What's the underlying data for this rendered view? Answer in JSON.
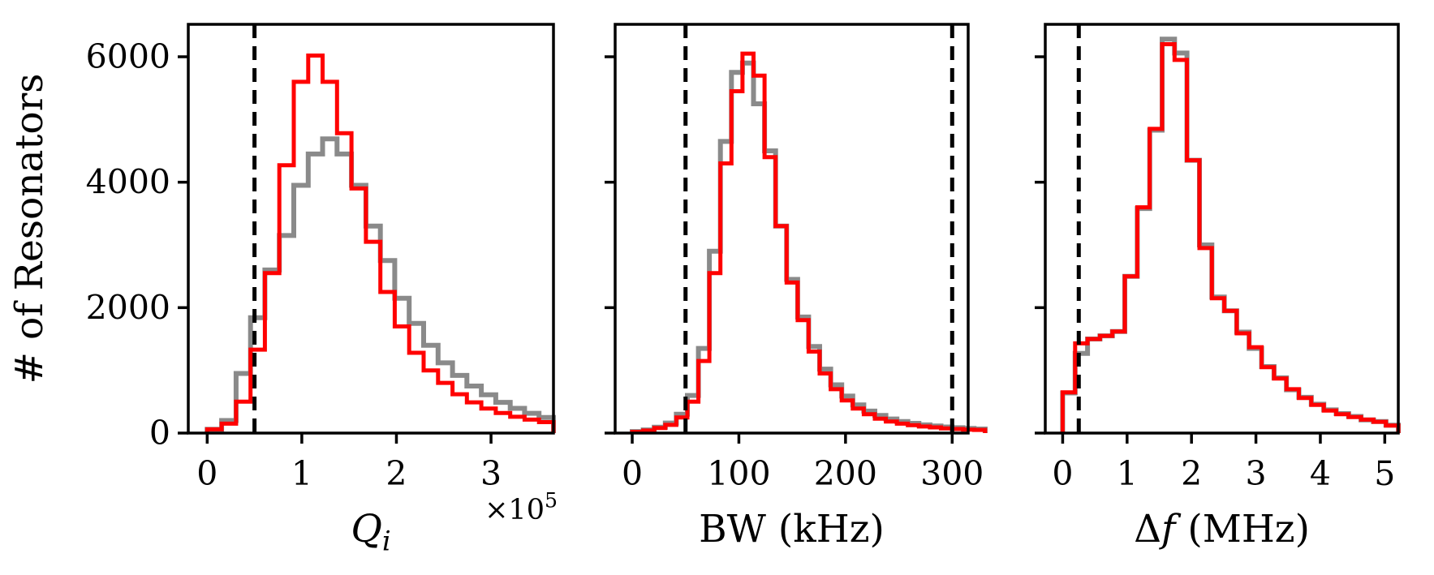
{
  "figure": {
    "background": "#ffffff",
    "axis_color": "#000000",
    "ylabel": "# of Resonators",
    "ylim": [
      0,
      6500
    ],
    "yticks": {
      "values": [
        0,
        2000,
        4000,
        6000
      ],
      "labels": [
        "0",
        "2000",
        "4000",
        "6000"
      ]
    },
    "series_colors": {
      "red": "#ff0000",
      "gray": "#8a8a8a"
    },
    "dashed_line_color": "#000000"
  },
  "chart_data": [
    {
      "type": "bar",
      "subtype": "step-histogram",
      "title": "",
      "xlabel_parts": [
        {
          "t": "Q",
          "style": "it"
        },
        {
          "t": "i",
          "style": "sub"
        }
      ],
      "xlabel_plain": "Qi",
      "offset_parts": [
        {
          "t": "×10",
          "style": ""
        },
        {
          "t": "5",
          "style": "sup"
        }
      ],
      "offset_plain": "×10^5",
      "ylabel": "# of Resonators",
      "xlim": [
        -0.2,
        3.66
      ],
      "ylim": [
        0,
        6500
      ],
      "xticks": {
        "values": [
          0,
          1,
          2,
          3
        ],
        "labels": [
          "0",
          "1",
          "2",
          "3"
        ]
      },
      "dashed_vlines": [
        0.5
      ],
      "bins": {
        "start": 0,
        "width": 0.1525
      },
      "series": [
        {
          "name": "gray",
          "values": [
            60,
            200,
            950,
            1840,
            2600,
            3150,
            3950,
            4450,
            4690,
            4450,
            3950,
            3300,
            2750,
            2150,
            1750,
            1400,
            1120,
            920,
            750,
            610,
            490,
            395,
            315,
            250
          ]
        },
        {
          "name": "red",
          "values": [
            60,
            150,
            500,
            1330,
            2550,
            4270,
            5600,
            6020,
            5600,
            4780,
            3900,
            3050,
            2250,
            1700,
            1280,
            1000,
            800,
            620,
            490,
            390,
            320,
            260,
            215,
            175
          ]
        }
      ]
    },
    {
      "type": "bar",
      "subtype": "step-histogram",
      "title": "",
      "xlabel_parts": [
        {
          "t": "BW (kHz)",
          "style": ""
        }
      ],
      "xlabel_plain": "BW (kHz)",
      "offset_parts": [],
      "offset_plain": "",
      "ylabel": "# of Resonators",
      "xlim": [
        -16,
        315
      ],
      "ylim": [
        0,
        6500
      ],
      "xticks": {
        "values": [
          0,
          100,
          200,
          300
        ],
        "labels": [
          "0",
          "100",
          "200",
          "300"
        ]
      },
      "dashed_vlines": [
        50,
        300
      ],
      "bins": {
        "start": 0,
        "width": 10.34
      },
      "series": [
        {
          "name": "gray",
          "values": [
            25,
            50,
            95,
            160,
            300,
            600,
            1350,
            2900,
            4650,
            5750,
            5900,
            5250,
            4500,
            3300,
            2450,
            1850,
            1380,
            1020,
            770,
            590,
            450,
            350,
            280,
            225,
            185,
            155,
            130,
            112,
            97,
            85,
            75,
            65
          ]
        },
        {
          "name": "red",
          "values": [
            20,
            40,
            80,
            130,
            250,
            500,
            1150,
            2550,
            4300,
            5450,
            6050,
            5700,
            4400,
            3300,
            2400,
            1800,
            1300,
            950,
            700,
            520,
            390,
            300,
            230,
            185,
            150,
            125,
            105,
            90,
            75,
            65,
            55,
            50
          ]
        }
      ]
    },
    {
      "type": "bar",
      "subtype": "step-histogram",
      "title": "",
      "xlabel_parts": [
        {
          "t": "Δ",
          "style": ""
        },
        {
          "t": "f",
          "style": "it"
        },
        {
          "t": " (MHz)",
          "style": ""
        }
      ],
      "xlabel_plain": "Δf (MHz)",
      "offset_parts": [],
      "offset_plain": "",
      "ylabel": "# of Resonators",
      "xlim": [
        -0.27,
        5.21
      ],
      "ylim": [
        0,
        6500
      ],
      "xticks": {
        "values": [
          0,
          1,
          2,
          3,
          4,
          5
        ],
        "labels": [
          "0",
          "1",
          "2",
          "3",
          "4",
          "5"
        ]
      },
      "dashed_vlines": [
        0.25
      ],
      "bins": {
        "start": 0,
        "width": 0.193
      },
      "series": [
        {
          "name": "gray",
          "values": [
            640,
            1270,
            1500,
            1550,
            1620,
            2500,
            3580,
            4830,
            6280,
            6060,
            4350,
            3000,
            2170,
            1950,
            1610,
            1350,
            1060,
            880,
            690,
            570,
            460,
            370,
            310,
            265,
            210,
            185,
            125
          ]
        },
        {
          "name": "red",
          "values": [
            650,
            1430,
            1500,
            1550,
            1620,
            2500,
            3600,
            4850,
            6200,
            5950,
            4350,
            2950,
            2150,
            1950,
            1590,
            1370,
            1050,
            870,
            700,
            560,
            450,
            360,
            300,
            255,
            215,
            180,
            120
          ]
        }
      ]
    }
  ]
}
